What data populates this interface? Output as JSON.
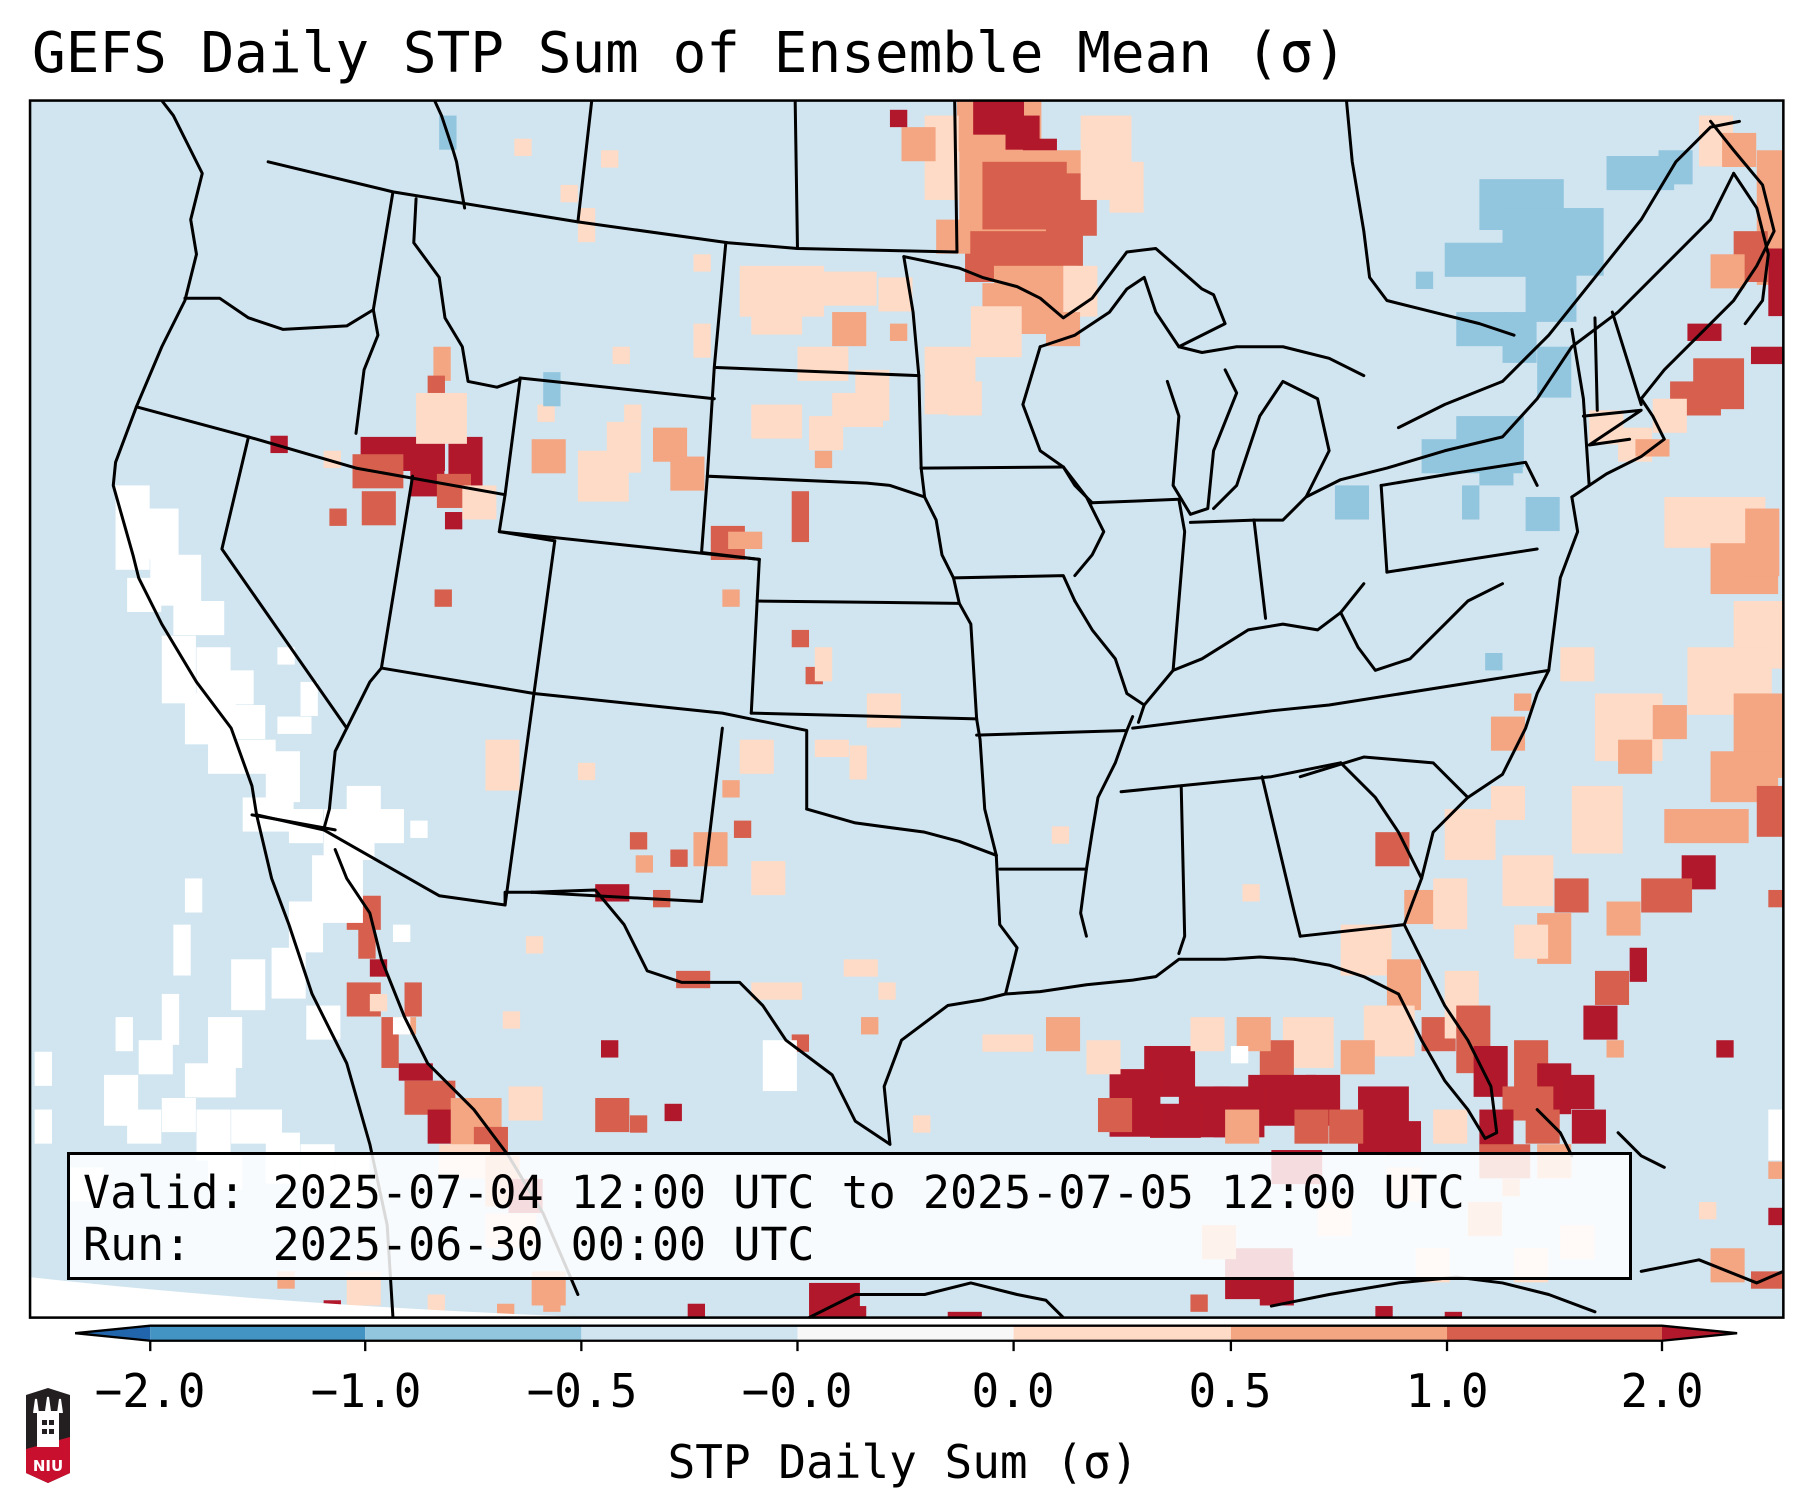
{
  "title": "GEFS Daily STP Sum of Ensemble Mean (σ)",
  "info": {
    "valid_label": "Valid:",
    "valid_value": "2025-07-04 12:00 UTC to 2025-07-05 12:00 UTC",
    "run_label": "Run:",
    "run_value": "2025-06-30 00:00 UTC"
  },
  "colorbar": {
    "label": "STP Daily Sum (σ)",
    "ticks": [
      "−2.0",
      "−1.0",
      "−0.5",
      "−0.0",
      "0.0",
      "0.5",
      "1.0",
      "2.0"
    ],
    "bins": [
      {
        "range": "< -2.0",
        "color": "#2166ac"
      },
      {
        "range": "-2.0 to -1.0",
        "color": "#4393c3"
      },
      {
        "range": "-1.0 to -0.5",
        "color": "#92c5de"
      },
      {
        "range": "-0.5 to -0.0",
        "color": "#d1e5f0"
      },
      {
        "range": "-0.0 to 0.0",
        "color": "#f7f7f7"
      },
      {
        "range": "0.0 to 0.5",
        "color": "#fddbc7"
      },
      {
        "range": "0.5 to 1.0",
        "color": "#f4a582"
      },
      {
        "range": "1.0 to 2.0",
        "color": "#d6604d"
      },
      {
        "range": "> 2.0",
        "color": "#b2182b"
      }
    ],
    "extend": "both"
  },
  "map": {
    "projection": "Lambert conformal, CONUS",
    "background_color": "#d1e5f0",
    "missing_color": "#ffffff",
    "features": [
      "coastlines",
      "country borders",
      "state borders"
    ],
    "anomaly_regions": [
      {
        "name": "Manitoba / northwestern Ontario / northern Minnesota",
        "category": "0.5 to > 2.0"
      },
      {
        "name": "Northern Plains (Dakotas, Montana, Wyoming)",
        "category": "0.0 to 1.0"
      },
      {
        "name": "Southern Idaho / northern Nevada / Utah border",
        "category": "1.0 to > 2.0"
      },
      {
        "name": "Quebec / New York / Pennsylvania",
        "category": "-1.0 to -0.5"
      },
      {
        "name": "Gulf of Mexico / Florida",
        "category": "0.5 to > 2.0"
      },
      {
        "name": "Western Atlantic / Nova Scotia",
        "category": "0.0 to > 2.0"
      },
      {
        "name": "Gulf of California / northwest Mexico",
        "category": "0.5 to > 2.0"
      },
      {
        "name": "Eastern Pacific off California / Baja",
        "category": "-0.0 to 0.0 (white)"
      }
    ]
  },
  "logo": {
    "text": "NIU"
  }
}
